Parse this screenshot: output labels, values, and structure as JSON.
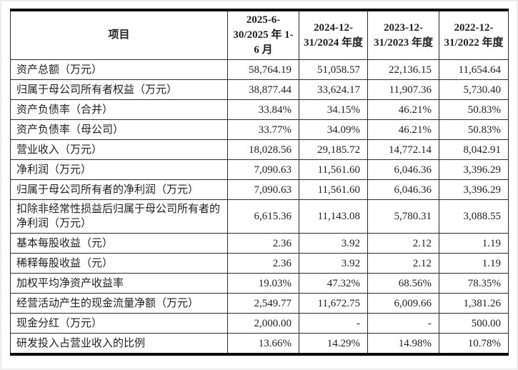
{
  "table": {
    "columns": [
      "项目",
      "2025-6-30/2025 年 1-6 月",
      "2024-12-31/2024 年度",
      "2023-12-31/2023 年度",
      "2022-12-31/2022 年度"
    ],
    "rows": [
      {
        "label": "资产总额（万元）",
        "values": [
          "58,764.19",
          "51,058.57",
          "22,136.15",
          "11,654.64"
        ]
      },
      {
        "label": "归属于母公司所有者权益（万元）",
        "values": [
          "38,877.44",
          "33,624.17",
          "11,907.36",
          "5,730.40"
        ]
      },
      {
        "label": "资产负债率（合并）",
        "values": [
          "33.84%",
          "34.15%",
          "46.21%",
          "50.83%"
        ]
      },
      {
        "label": "资产负债率（母公司）",
        "values": [
          "33.77%",
          "34.09%",
          "46.21%",
          "50.83%"
        ]
      },
      {
        "label": "营业收入（万元）",
        "values": [
          "18,028.56",
          "29,185.72",
          "14,772.14",
          "8,042.91"
        ]
      },
      {
        "label": "净利润（万元）",
        "values": [
          "7,090.63",
          "11,561.60",
          "6,046.36",
          "3,396.29"
        ]
      },
      {
        "label": "归属于母公司所有者的净利润（万元）",
        "values": [
          "7,090.63",
          "11,561.60",
          "6,046.36",
          "3,396.29"
        ]
      },
      {
        "label": "扣除非经常性损益后归属于母公司所有者的净利润（万元）",
        "values": [
          "6,615.36",
          "11,143.08",
          "5,780.31",
          "3,088.55"
        ]
      },
      {
        "label": "基本每股收益（元）",
        "values": [
          "2.36",
          "3.92",
          "2.12",
          "1.19"
        ]
      },
      {
        "label": "稀释每股收益（元）",
        "values": [
          "2.36",
          "3.92",
          "2.12",
          "1.19"
        ]
      },
      {
        "label": "加权平均净资产收益率",
        "values": [
          "19.03%",
          "47.32%",
          "68.56%",
          "78.35%"
        ]
      },
      {
        "label": "经营活动产生的现金流量净额（万元）",
        "values": [
          "2,549.77",
          "11,672.75",
          "6,009.66",
          "1,381.26"
        ]
      },
      {
        "label": "现金分红（万元）",
        "values": [
          "2,000.00",
          "-",
          "-",
          "500.00"
        ]
      },
      {
        "label": "研发投入占营业收入的比例",
        "values": [
          "13.66%",
          "14.29%",
          "14.98%",
          "10.78%"
        ]
      }
    ]
  }
}
